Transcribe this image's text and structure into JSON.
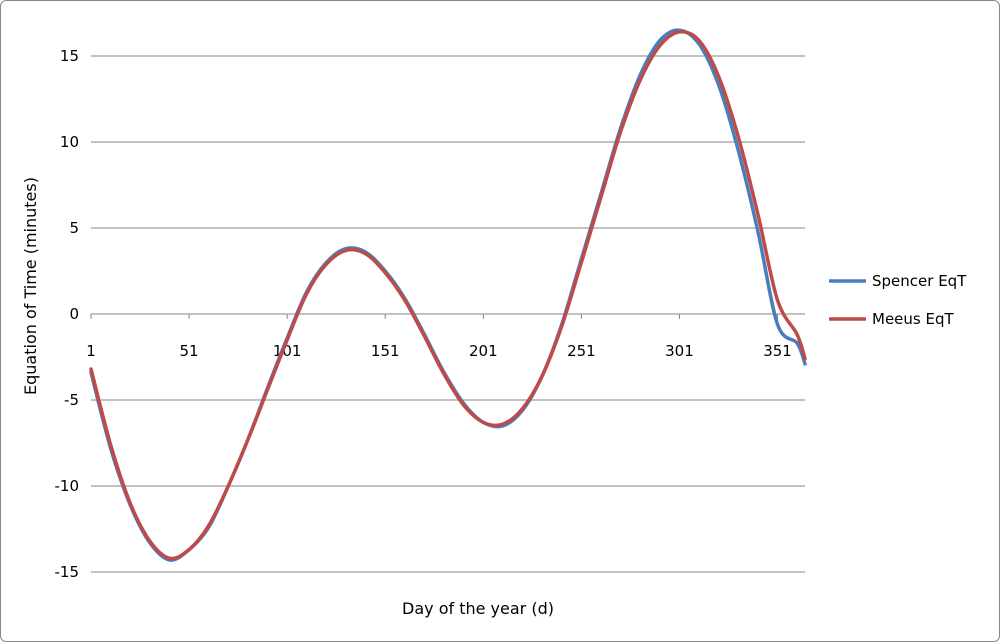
{
  "chart_data": {
    "type": "line",
    "xlabel": "Day of the year (d)",
    "ylabel": "Equation of Time (minutes)",
    "xlim": [
      1,
      365
    ],
    "ylim": [
      -15,
      17.5
    ],
    "y_ticks": [
      15,
      10,
      5,
      0,
      -5,
      -10,
      -15
    ],
    "x_tick_labels": [
      "1",
      "51",
      "101",
      "151",
      "201",
      "251",
      "301",
      "351"
    ],
    "grid": "horizontal",
    "legend_position": "right",
    "x": [
      1,
      11,
      21,
      31,
      41,
      51,
      61,
      71,
      81,
      91,
      101,
      111,
      121,
      131,
      141,
      151,
      161,
      171,
      181,
      191,
      201,
      211,
      221,
      231,
      241,
      251,
      261,
      271,
      281,
      291,
      301,
      311,
      321,
      331,
      341,
      351,
      361,
      365
    ],
    "series": [
      {
        "name": "Spencer EqT",
        "color": "#4A7EBB",
        "values": [
          -3.4,
          -7.8,
          -11.1,
          -13.3,
          -14.3,
          -13.7,
          -12.4,
          -10.0,
          -7.3,
          -4.3,
          -1.4,
          1.3,
          3.0,
          3.8,
          3.6,
          2.5,
          0.9,
          -1.2,
          -3.4,
          -5.2,
          -6.3,
          -6.5,
          -5.6,
          -3.6,
          -0.6,
          3.2,
          7.0,
          10.8,
          13.9,
          15.9,
          16.5,
          15.7,
          13.3,
          9.5,
          4.8,
          -0.6,
          -1.7,
          -2.9
        ]
      },
      {
        "name": "Meeus EqT",
        "color": "#BE4B48",
        "values": [
          -3.2,
          -7.6,
          -11.0,
          -13.2,
          -14.2,
          -13.7,
          -12.3,
          -10.0,
          -7.3,
          -4.4,
          -1.5,
          1.2,
          2.9,
          3.7,
          3.5,
          2.4,
          0.8,
          -1.3,
          -3.5,
          -5.3,
          -6.3,
          -6.4,
          -5.5,
          -3.6,
          -0.7,
          3.0,
          6.8,
          10.6,
          13.6,
          15.6,
          16.4,
          15.9,
          13.8,
          10.3,
          5.8,
          0.8,
          -1.2,
          -2.6
        ]
      }
    ]
  }
}
